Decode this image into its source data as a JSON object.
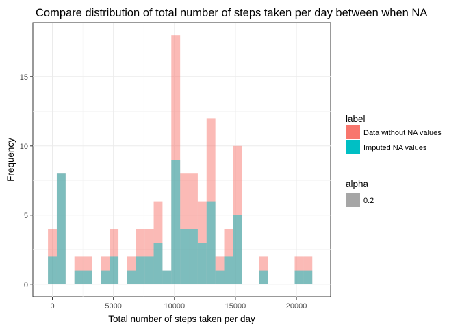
{
  "chart_data": {
    "type": "histogram",
    "title": "Compare distribution of total number of steps taken per day between when NA",
    "xlabel": "Total number of steps taken per day",
    "ylabel": "Frequency",
    "xlim": [
      -1600,
      22800
    ],
    "ylim": [
      -0.9,
      18.9
    ],
    "x_ticks": [
      0,
      5000,
      10000,
      15000,
      20000
    ],
    "y_ticks": [
      0,
      5,
      10,
      15
    ],
    "grid": true,
    "bin_width": 722,
    "series": [
      {
        "name": "Data without NA values",
        "color": "#f8766d",
        "bins": [
          {
            "x": 0,
            "count": 4
          },
          {
            "x": 722,
            "count": 8
          },
          {
            "x": 2166,
            "count": 2
          },
          {
            "x": 2888,
            "count": 2
          },
          {
            "x": 4332,
            "count": 2
          },
          {
            "x": 5054,
            "count": 4
          },
          {
            "x": 6498,
            "count": 2
          },
          {
            "x": 7220,
            "count": 4
          },
          {
            "x": 7942,
            "count": 4
          },
          {
            "x": 8664,
            "count": 6
          },
          {
            "x": 9386,
            "count": 1
          },
          {
            "x": 10108,
            "count": 18
          },
          {
            "x": 10830,
            "count": 8
          },
          {
            "x": 11552,
            "count": 8
          },
          {
            "x": 12274,
            "count": 6
          },
          {
            "x": 12996,
            "count": 12
          },
          {
            "x": 13718,
            "count": 2
          },
          {
            "x": 14440,
            "count": 4
          },
          {
            "x": 15162,
            "count": 10
          },
          {
            "x": 17328,
            "count": 2
          },
          {
            "x": 20216,
            "count": 2
          },
          {
            "x": 20938,
            "count": 2
          }
        ]
      },
      {
        "name": "Imputed NA values",
        "color": "#00bfc4",
        "bins": [
          {
            "x": 0,
            "count": 2
          },
          {
            "x": 722,
            "count": 8
          },
          {
            "x": 2166,
            "count": 1
          },
          {
            "x": 2888,
            "count": 1
          },
          {
            "x": 4332,
            "count": 1
          },
          {
            "x": 5054,
            "count": 2
          },
          {
            "x": 6498,
            "count": 1
          },
          {
            "x": 7220,
            "count": 2
          },
          {
            "x": 7942,
            "count": 2
          },
          {
            "x": 8664,
            "count": 3
          },
          {
            "x": 9386,
            "count": 1
          },
          {
            "x": 10108,
            "count": 9
          },
          {
            "x": 10830,
            "count": 4
          },
          {
            "x": 11552,
            "count": 4
          },
          {
            "x": 12274,
            "count": 3
          },
          {
            "x": 12996,
            "count": 6
          },
          {
            "x": 13718,
            "count": 1
          },
          {
            "x": 14440,
            "count": 2
          },
          {
            "x": 15162,
            "count": 5
          },
          {
            "x": 17328,
            "count": 1
          },
          {
            "x": 20216,
            "count": 1
          },
          {
            "x": 20938,
            "count": 1
          }
        ]
      }
    ],
    "opacity": 0.5,
    "legend": {
      "position": "right",
      "label_title": "label",
      "labels": [
        "Data without NA values",
        "Imputed NA values"
      ],
      "alpha_title": "alpha",
      "alpha_labels": [
        "0.2"
      ],
      "alpha_color": "#a6a6a6"
    }
  }
}
